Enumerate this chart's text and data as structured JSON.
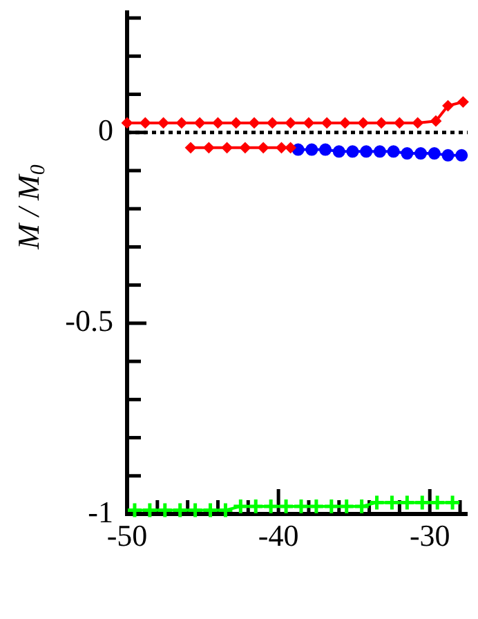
{
  "chart_data": {
    "type": "line",
    "ylabel": "M / M$_{0}$",
    "xlim": [
      -50,
      -27.5
    ],
    "ylim": [
      -1,
      0.32
    ],
    "xticks": [
      -50,
      {
        "value": -48,
        "label": null
      },
      {
        "value": -46,
        "label": null
      },
      {
        "value": -44,
        "label": null
      },
      {
        "value": -42,
        "label": null
      },
      -40,
      {
        "value": -38,
        "label": null
      },
      {
        "value": -36,
        "label": null
      },
      {
        "value": -34,
        "label": null
      },
      {
        "value": -32,
        "label": null
      },
      -30,
      {
        "value": -28,
        "label": null
      }
    ],
    "yticks": [
      -1,
      {
        "value": -0.9,
        "label": null
      },
      {
        "value": -0.8,
        "label": null
      },
      {
        "value": -0.7,
        "label": null
      },
      {
        "value": -0.6,
        "label": null
      },
      -0.5,
      {
        "value": -0.4,
        "label": null
      },
      {
        "value": -0.3,
        "label": null
      },
      {
        "value": -0.2,
        "label": null
      },
      {
        "value": -0.1,
        "label": null
      },
      0,
      {
        "value": 0.1,
        "label": null
      },
      {
        "value": 0.2,
        "label": null
      },
      {
        "value": 0.3,
        "label": null
      }
    ],
    "grid": false,
    "legend": false,
    "ref_lines": [
      {
        "axis": "y",
        "value": 0,
        "color": "#000000",
        "line_style": "dotted"
      }
    ],
    "series": [
      {
        "color": "#ff0000",
        "marker": "diamond",
        "x": [
          -50,
          -48.8,
          -47.6,
          -46.4,
          -45.2,
          -44,
          -42.8,
          -41.6,
          -40.4,
          -39.2,
          -38,
          -36.8,
          -35.6,
          -34.4,
          -33.2,
          -32,
          -30.8,
          -29.6,
          -28.8,
          -27.8
        ],
        "values": [
          0.025,
          0.025,
          0.025,
          0.025,
          0.025,
          0.025,
          0.025,
          0.025,
          0.025,
          0.025,
          0.025,
          0.025,
          0.025,
          0.025,
          0.025,
          0.025,
          0.025,
          0.03,
          0.07,
          0.08
        ]
      },
      {
        "color": "#ff0000",
        "marker": "diamond",
        "x": [
          -45.8,
          -44.6,
          -43.4,
          -42.2,
          -41,
          -39.8,
          -39.2
        ],
        "values": [
          -0.04,
          -0.04,
          -0.04,
          -0.04,
          -0.04,
          -0.04,
          -0.04
        ]
      },
      {
        "color": "#0000ff",
        "marker": "circle",
        "x": [
          -38.7,
          -37.8,
          -36.9,
          -36,
          -35.1,
          -34.2,
          -33.3,
          -32.4,
          -31.5,
          -30.6,
          -29.7,
          -28.8,
          -27.9
        ],
        "values": [
          -0.045,
          -0.045,
          -0.045,
          -0.05,
          -0.05,
          -0.05,
          -0.05,
          -0.05,
          -0.055,
          -0.055,
          -0.055,
          -0.06,
          -0.06
        ]
      },
      {
        "color": "#00ff00",
        "marker": "cross",
        "x": [
          -49.5,
          -48.5,
          -47.5,
          -46.5,
          -45.5,
          -44.5,
          -43.5,
          -42.5,
          -41.5,
          -40.5,
          -39.5,
          -38.5,
          -37.5,
          -36.5,
          -35.5,
          -34.5,
          -33.5,
          -32.5,
          -31.5,
          -30.5,
          -29.5,
          -28.5
        ],
        "values": [
          -0.99,
          -0.99,
          -0.99,
          -0.99,
          -0.99,
          -0.99,
          -0.99,
          -0.98,
          -0.98,
          -0.98,
          -0.98,
          -0.98,
          -0.98,
          -0.98,
          -0.98,
          -0.98,
          -0.97,
          -0.97,
          -0.97,
          -0.97,
          -0.97,
          -0.97
        ]
      }
    ]
  }
}
